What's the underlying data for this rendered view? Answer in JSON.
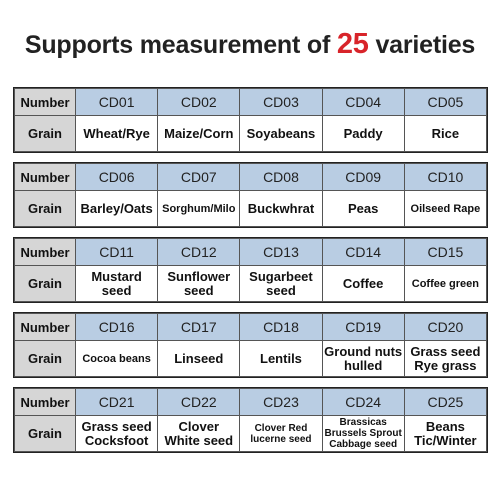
{
  "title": {
    "prefix": "Supports measurement of",
    "number": "25",
    "suffix": "varieties"
  },
  "colors": {
    "accent": "#d8242a",
    "header_cell_bg": "#b9cde3",
    "label_cell_bg": "#d6d6d6"
  },
  "labels": {
    "number": "Number",
    "grain": "Grain"
  },
  "rows": [
    {
      "codes": [
        "CD01",
        "CD02",
        "CD03",
        "CD04",
        "CD05"
      ],
      "grains": [
        "Wheat/Rye",
        "Maize/Corn",
        "Soyabeans",
        "Paddy",
        "Rice"
      ]
    },
    {
      "codes": [
        "CD06",
        "CD07",
        "CD08",
        "CD09",
        "CD10"
      ],
      "grains": [
        "Barley/Oats",
        "Sorghum/Milo",
        "Buckwhrat",
        "Peas",
        "Oilseed Rape"
      ]
    },
    {
      "codes": [
        "CD11",
        "CD12",
        "CD13",
        "CD14",
        "CD15"
      ],
      "grains": [
        "Mustard seed",
        "Sunflower seed",
        "Sugarbeet seed",
        "Coffee",
        "Coffee green"
      ]
    },
    {
      "codes": [
        "CD16",
        "CD17",
        "CD18",
        "CD19",
        "CD20"
      ],
      "grains": [
        "Cocoa beans",
        "Linseed",
        "Lentils",
        "Ground nuts hulled",
        "Grass seed Rye grass"
      ]
    },
    {
      "codes": [
        "CD21",
        "CD22",
        "CD23",
        "CD24",
        "CD25"
      ],
      "grains": [
        "Grass seed Cocksfoot",
        "Clover White seed",
        "Clover Red lucerne seed",
        "Brassicas Brussels Sprout Cabbage seed",
        "Beans Tic/Winter"
      ]
    }
  ]
}
